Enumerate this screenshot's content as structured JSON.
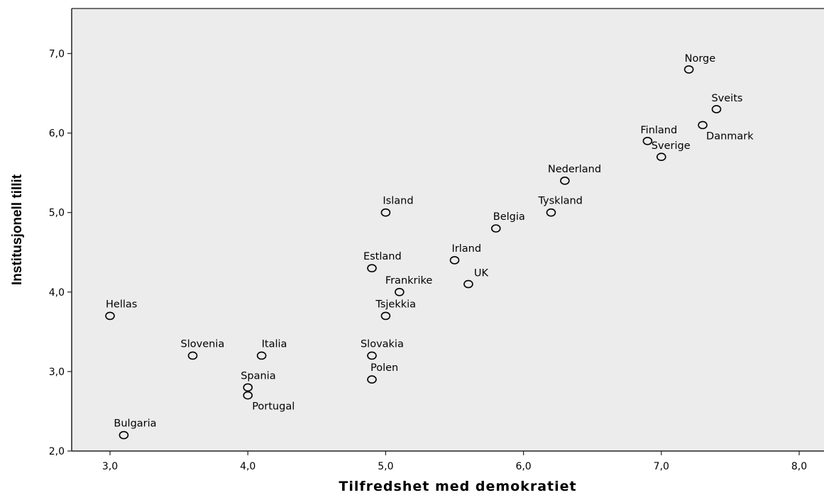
{
  "chart_data": {
    "type": "scatter",
    "title": "",
    "xlabel": "Tilfredshet med demokratiet",
    "ylabel": "Institusjonell tillit",
    "xlim": [
      2.72,
      8.2
    ],
    "ylim": [
      2.0,
      7.57
    ],
    "x_ticks": [
      "3,0",
      "4,0",
      "5,0",
      "6,0",
      "7,0",
      "8,0"
    ],
    "y_ticks": [
      "2,0",
      "3,0",
      "4,0",
      "5,0",
      "6,0",
      "7,0"
    ],
    "grid": false,
    "background_color": "#ececec",
    "marker_color": "#000000",
    "points": [
      {
        "label": "Norge",
        "x": 7.2,
        "y": 6.8
      },
      {
        "label": "Sveits",
        "x": 7.4,
        "y": 6.3
      },
      {
        "label": "Danmark",
        "x": 7.3,
        "y": 6.1
      },
      {
        "label": "Finland",
        "x": 6.9,
        "y": 5.9
      },
      {
        "label": "Sverige",
        "x": 7.0,
        "y": 5.7
      },
      {
        "label": "Nederland",
        "x": 6.3,
        "y": 5.4
      },
      {
        "label": "Tyskland",
        "x": 6.2,
        "y": 5.0
      },
      {
        "label": "Island",
        "x": 5.0,
        "y": 5.0
      },
      {
        "label": "Belgia",
        "x": 5.8,
        "y": 4.8
      },
      {
        "label": "Irland",
        "x": 5.5,
        "y": 4.4
      },
      {
        "label": "Estland",
        "x": 4.9,
        "y": 4.3
      },
      {
        "label": "UK",
        "x": 5.6,
        "y": 4.1
      },
      {
        "label": "Frankrike",
        "x": 5.1,
        "y": 4.0
      },
      {
        "label": "Tsjekkia",
        "x": 5.0,
        "y": 3.7
      },
      {
        "label": "Hellas",
        "x": 3.0,
        "y": 3.7
      },
      {
        "label": "Slovenia",
        "x": 3.6,
        "y": 3.2
      },
      {
        "label": "Italia",
        "x": 4.1,
        "y": 3.2
      },
      {
        "label": "Slovakia",
        "x": 4.9,
        "y": 3.2
      },
      {
        "label": "Polen",
        "x": 4.9,
        "y": 2.9
      },
      {
        "label": "Spania",
        "x": 4.0,
        "y": 2.8
      },
      {
        "label": "Portugal",
        "x": 4.0,
        "y": 2.7
      },
      {
        "label": "Bulgaria",
        "x": 3.1,
        "y": 2.2
      }
    ]
  }
}
